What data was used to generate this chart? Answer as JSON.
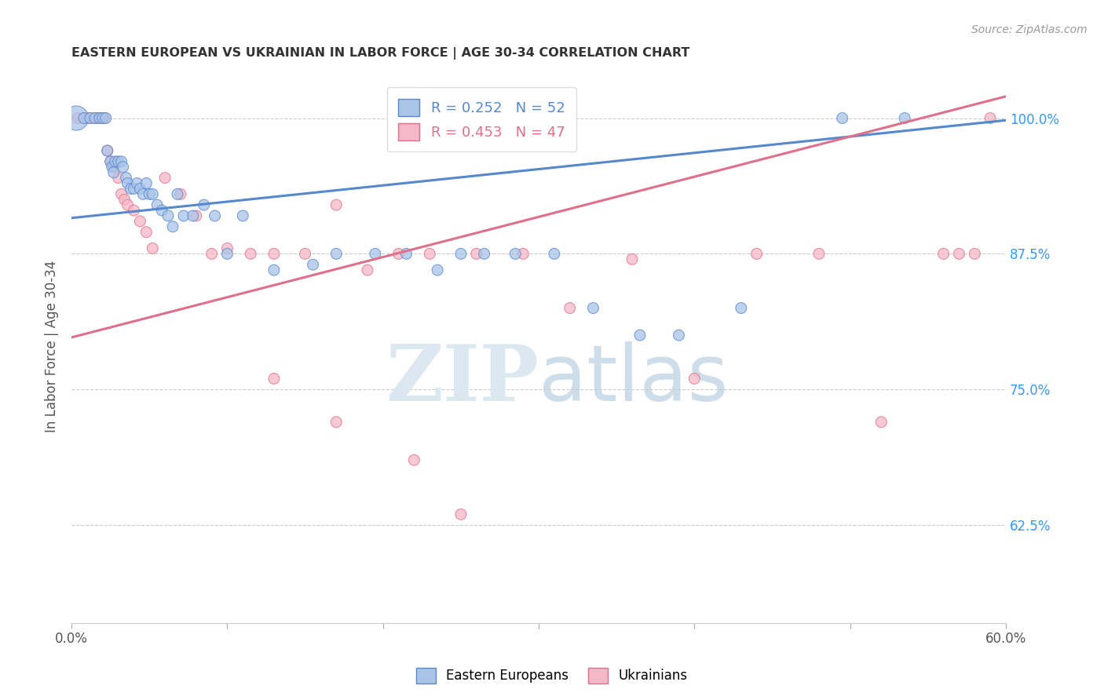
{
  "title": "EASTERN EUROPEAN VS UKRAINIAN IN LABOR FORCE | AGE 30-34 CORRELATION CHART",
  "source": "Source: ZipAtlas.com",
  "ylabel": "In Labor Force | Age 30-34",
  "xlim": [
    0.0,
    0.6
  ],
  "ylim": [
    0.535,
    1.045
  ],
  "xticks": [
    0.0,
    0.1,
    0.2,
    0.3,
    0.4,
    0.5,
    0.6
  ],
  "xtick_labels": [
    "0.0%",
    "",
    "",
    "",
    "",
    "",
    "60.0%"
  ],
  "ytick_positions": [
    0.625,
    0.75,
    0.875,
    1.0
  ],
  "ytick_labels": [
    "62.5%",
    "75.0%",
    "87.5%",
    "100.0%"
  ],
  "blue_color": "#aac4e8",
  "pink_color": "#f5b8c8",
  "blue_edge_color": "#5588cc",
  "pink_edge_color": "#e0708a",
  "legend_blue_r": "0.252",
  "legend_blue_n": "52",
  "legend_pink_r": "0.453",
  "legend_pink_n": "47",
  "blue_x": [
    0.003,
    0.008,
    0.012,
    0.015,
    0.018,
    0.02,
    0.022,
    0.023,
    0.025,
    0.026,
    0.027,
    0.028,
    0.03,
    0.032,
    0.033,
    0.035,
    0.036,
    0.038,
    0.04,
    0.042,
    0.044,
    0.046,
    0.048,
    0.05,
    0.052,
    0.055,
    0.058,
    0.062,
    0.065,
    0.068,
    0.072,
    0.078,
    0.085,
    0.092,
    0.1,
    0.11,
    0.13,
    0.155,
    0.17,
    0.195,
    0.215,
    0.235,
    0.25,
    0.265,
    0.285,
    0.31,
    0.335,
    0.365,
    0.39,
    0.43,
    0.495,
    0.535
  ],
  "blue_y": [
    1.0,
    1.0,
    1.0,
    1.0,
    1.0,
    1.0,
    1.0,
    0.97,
    0.96,
    0.955,
    0.95,
    0.96,
    0.96,
    0.96,
    0.955,
    0.945,
    0.94,
    0.935,
    0.935,
    0.94,
    0.935,
    0.93,
    0.94,
    0.93,
    0.93,
    0.92,
    0.915,
    0.91,
    0.9,
    0.93,
    0.91,
    0.91,
    0.92,
    0.91,
    0.875,
    0.91,
    0.86,
    0.865,
    0.875,
    0.875,
    0.875,
    0.86,
    0.875,
    0.875,
    0.875,
    0.875,
    0.825,
    0.8,
    0.8,
    0.825,
    1.0,
    1.0
  ],
  "blue_sizes": [
    500,
    100,
    100,
    100,
    100,
    100,
    100,
    100,
    100,
    100,
    100,
    100,
    100,
    100,
    100,
    100,
    100,
    100,
    100,
    100,
    100,
    100,
    100,
    100,
    100,
    100,
    100,
    100,
    100,
    100,
    100,
    100,
    100,
    100,
    100,
    100,
    100,
    100,
    100,
    100,
    100,
    100,
    100,
    100,
    100,
    100,
    100,
    100,
    100,
    100,
    100,
    100
  ],
  "pink_x": [
    0.004,
    0.008,
    0.01,
    0.012,
    0.015,
    0.017,
    0.019,
    0.021,
    0.023,
    0.025,
    0.027,
    0.03,
    0.032,
    0.034,
    0.036,
    0.04,
    0.044,
    0.048,
    0.052,
    0.06,
    0.07,
    0.08,
    0.09,
    0.1,
    0.115,
    0.13,
    0.15,
    0.17,
    0.19,
    0.21,
    0.23,
    0.26,
    0.29,
    0.32,
    0.36,
    0.4,
    0.44,
    0.48,
    0.52,
    0.56,
    0.57,
    0.58,
    0.59,
    0.13,
    0.17,
    0.22,
    0.25
  ],
  "pink_y": [
    1.0,
    1.0,
    1.0,
    1.0,
    1.0,
    1.0,
    1.0,
    1.0,
    0.97,
    0.96,
    0.955,
    0.945,
    0.93,
    0.925,
    0.92,
    0.915,
    0.905,
    0.895,
    0.88,
    0.945,
    0.93,
    0.91,
    0.875,
    0.88,
    0.875,
    0.875,
    0.875,
    0.92,
    0.86,
    0.875,
    0.875,
    0.875,
    0.875,
    0.825,
    0.87,
    0.76,
    0.875,
    0.875,
    0.72,
    0.875,
    0.875,
    0.875,
    1.0,
    0.76,
    0.72,
    0.685,
    0.635
  ],
  "pink_sizes": [
    100,
    100,
    100,
    100,
    100,
    100,
    100,
    100,
    100,
    100,
    100,
    100,
    100,
    100,
    100,
    100,
    100,
    100,
    100,
    100,
    100,
    100,
    100,
    100,
    100,
    100,
    100,
    100,
    100,
    100,
    100,
    100,
    100,
    100,
    100,
    100,
    100,
    100,
    100,
    100,
    100,
    100,
    100,
    100,
    100,
    100,
    100
  ],
  "blue_line_x": [
    0.0,
    0.6
  ],
  "blue_line_y": [
    0.908,
    0.998
  ],
  "pink_line_x": [
    0.0,
    0.6
  ],
  "pink_line_y": [
    0.798,
    1.02
  ],
  "watermark_zip": "ZIP",
  "watermark_atlas": "atlas",
  "background_color": "#ffffff",
  "grid_color": "#cccccc",
  "title_color": "#333333",
  "axis_label_color": "#555555",
  "right_tick_color": "#3399ff",
  "watermark_color": "#dce8f0"
}
